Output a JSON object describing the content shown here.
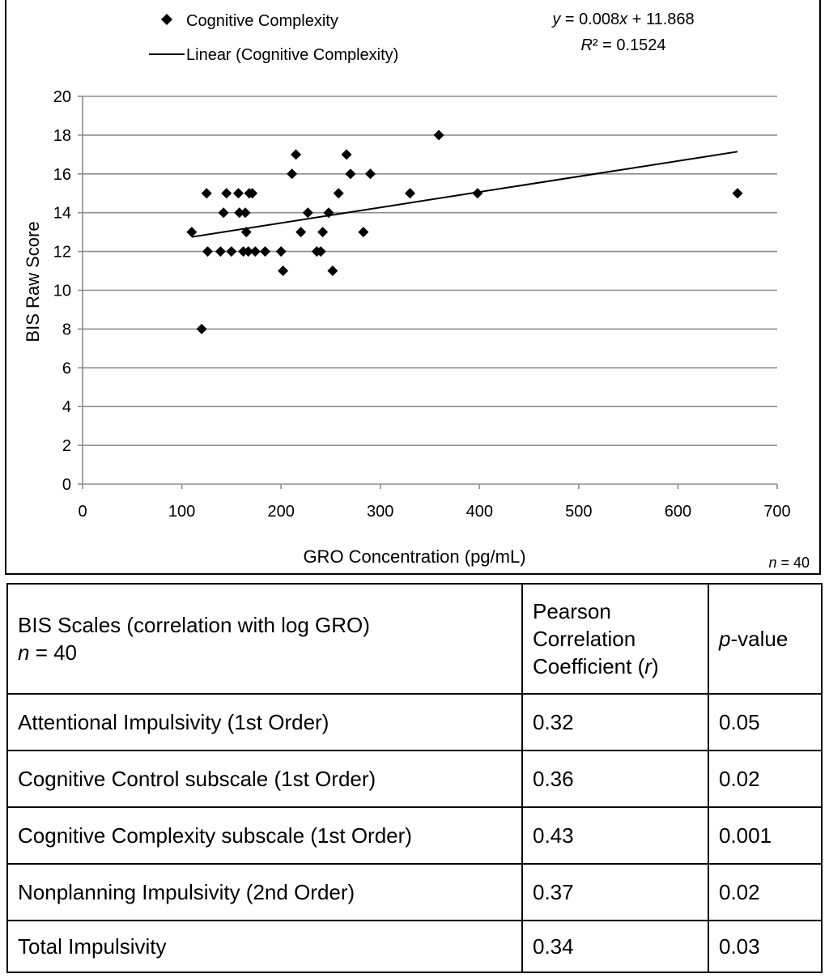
{
  "chart_data": {
    "type": "scatter",
    "title": "",
    "xlabel": "GRO Concentration (pg/mL)",
    "ylabel": "BIS Raw Score",
    "xlim": [
      0,
      700
    ],
    "ylim": [
      0,
      20
    ],
    "xticks": [
      0,
      100,
      200,
      300,
      400,
      500,
      600,
      700
    ],
    "yticks": [
      0,
      2,
      4,
      6,
      8,
      10,
      12,
      14,
      16,
      18,
      20
    ],
    "grid": "horizontal",
    "legend": {
      "position": "top-left",
      "entries": [
        "Cognitive Complexity",
        "Linear (Cognitive Complexity)"
      ]
    },
    "equation_label": {
      "prefix": "y",
      "middle": " = 0.008",
      "var": "x",
      "suffix": " + 11.868"
    },
    "r2_label": {
      "prefix": "R",
      "suffix": "² = 0.1524"
    },
    "n_label": {
      "var": "n",
      "rest": " = 40"
    },
    "series": [
      {
        "name": "Cognitive Complexity",
        "marker": "diamond",
        "points": [
          [
            110,
            13
          ],
          [
            120,
            8
          ],
          [
            125,
            15
          ],
          [
            126,
            12
          ],
          [
            139,
            12
          ],
          [
            142,
            14
          ],
          [
            145,
            15
          ],
          [
            150,
            12
          ],
          [
            157,
            15
          ],
          [
            158,
            14
          ],
          [
            162,
            12
          ],
          [
            164,
            14
          ],
          [
            165,
            13
          ],
          [
            167,
            12
          ],
          [
            168,
            15
          ],
          [
            171,
            15
          ],
          [
            174,
            12
          ],
          [
            184,
            12
          ],
          [
            200,
            12
          ],
          [
            202,
            11
          ],
          [
            211,
            16
          ],
          [
            215,
            17
          ],
          [
            220,
            13
          ],
          [
            227,
            14
          ],
          [
            236,
            12
          ],
          [
            240,
            12
          ],
          [
            242,
            13
          ],
          [
            248,
            14
          ],
          [
            252,
            11
          ],
          [
            258,
            15
          ],
          [
            266,
            17
          ],
          [
            270,
            16
          ],
          [
            283,
            13
          ],
          [
            290,
            16
          ],
          [
            330,
            15
          ],
          [
            359,
            18
          ],
          [
            398,
            15
          ],
          [
            660,
            15
          ]
        ]
      }
    ],
    "trendline": {
      "name": "Linear (Cognitive Complexity)",
      "slope": 0.008,
      "intercept": 11.868,
      "x_range": [
        110,
        660
      ]
    }
  },
  "table": {
    "header": {
      "scales_line1": "BIS Scales (correlation with log GRO)",
      "scales_n_var": "n",
      "scales_n_rest": " = 40",
      "pearson_line1": "Pearson",
      "pearson_line2": "Correlation",
      "pearson_line3_pre": "Coefficient (",
      "pearson_line3_var": "r",
      "pearson_line3_post": ")",
      "p_var": "p",
      "p_rest": "-value"
    },
    "rows": [
      {
        "scale": "Attentional Impulsivity (1st Order)",
        "r": "0.32",
        "p": "0.05"
      },
      {
        "scale": "Cognitive Control subscale (1st Order)",
        "r": "0.36",
        "p": "0.02"
      },
      {
        "scale": "Cognitive Complexity subscale (1st Order)",
        "r": "0.43",
        "p": "0.001"
      },
      {
        "scale": "Nonplanning Impulsivity (2nd Order)",
        "r": "0.37",
        "p": "0.02"
      },
      {
        "scale": "Total Impulsivity",
        "r": "0.34",
        "p": "0.03"
      }
    ]
  }
}
